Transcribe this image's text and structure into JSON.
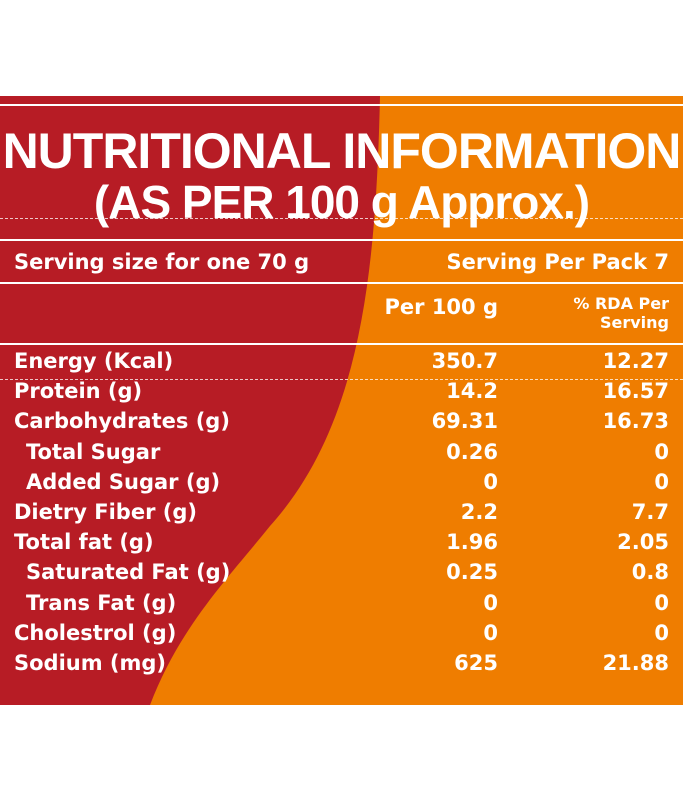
{
  "title": {
    "line1": "NUTRITIONAL INFORMATION",
    "line2": "(AS PER 100 g Approx.)"
  },
  "serving": {
    "size_label": "Serving size for one 70 g",
    "per_pack_label": "Serving Per Pack 7"
  },
  "columns": {
    "per_100g": "Per 100 g",
    "rda_line1": "% RDA Per",
    "rda_line2": "Serving"
  },
  "rows": [
    {
      "name": "Energy (Kcal)",
      "per_100g": "350.7",
      "rda": "12.27",
      "indent": false
    },
    {
      "name": "Protein (g)",
      "per_100g": "14.2",
      "rda": "16.57",
      "indent": false
    },
    {
      "name": "Carbohydrates (g)",
      "per_100g": "69.31",
      "rda": "16.73",
      "indent": false
    },
    {
      "name": "Total Sugar",
      "per_100g": "0.26",
      "rda": "0",
      "indent": true
    },
    {
      "name": "Added Sugar (g)",
      "per_100g": "0",
      "rda": "0",
      "indent": true
    },
    {
      "name": "Dietry Fiber (g)",
      "per_100g": "2.2",
      "rda": "7.7",
      "indent": false
    },
    {
      "name": "Total fat (g)",
      "per_100g": "1.96",
      "rda": "2.05",
      "indent": false
    },
    {
      "name": "Saturated Fat (g)",
      "per_100g": "0.25",
      "rda": "0.8",
      "indent": true
    },
    {
      "name": "Trans Fat (g)",
      "per_100g": "0",
      "rda": "0",
      "indent": true
    },
    {
      "name": "Cholestrol (g)",
      "per_100g": "0",
      "rda": "0",
      "indent": false
    },
    {
      "name": "Sodium (mg)",
      "per_100g": "625",
      "rda": "21.88",
      "indent": false
    }
  ],
  "colors": {
    "red": "#b71c25",
    "orange": "#ef7d00",
    "text": "#ffffff"
  }
}
